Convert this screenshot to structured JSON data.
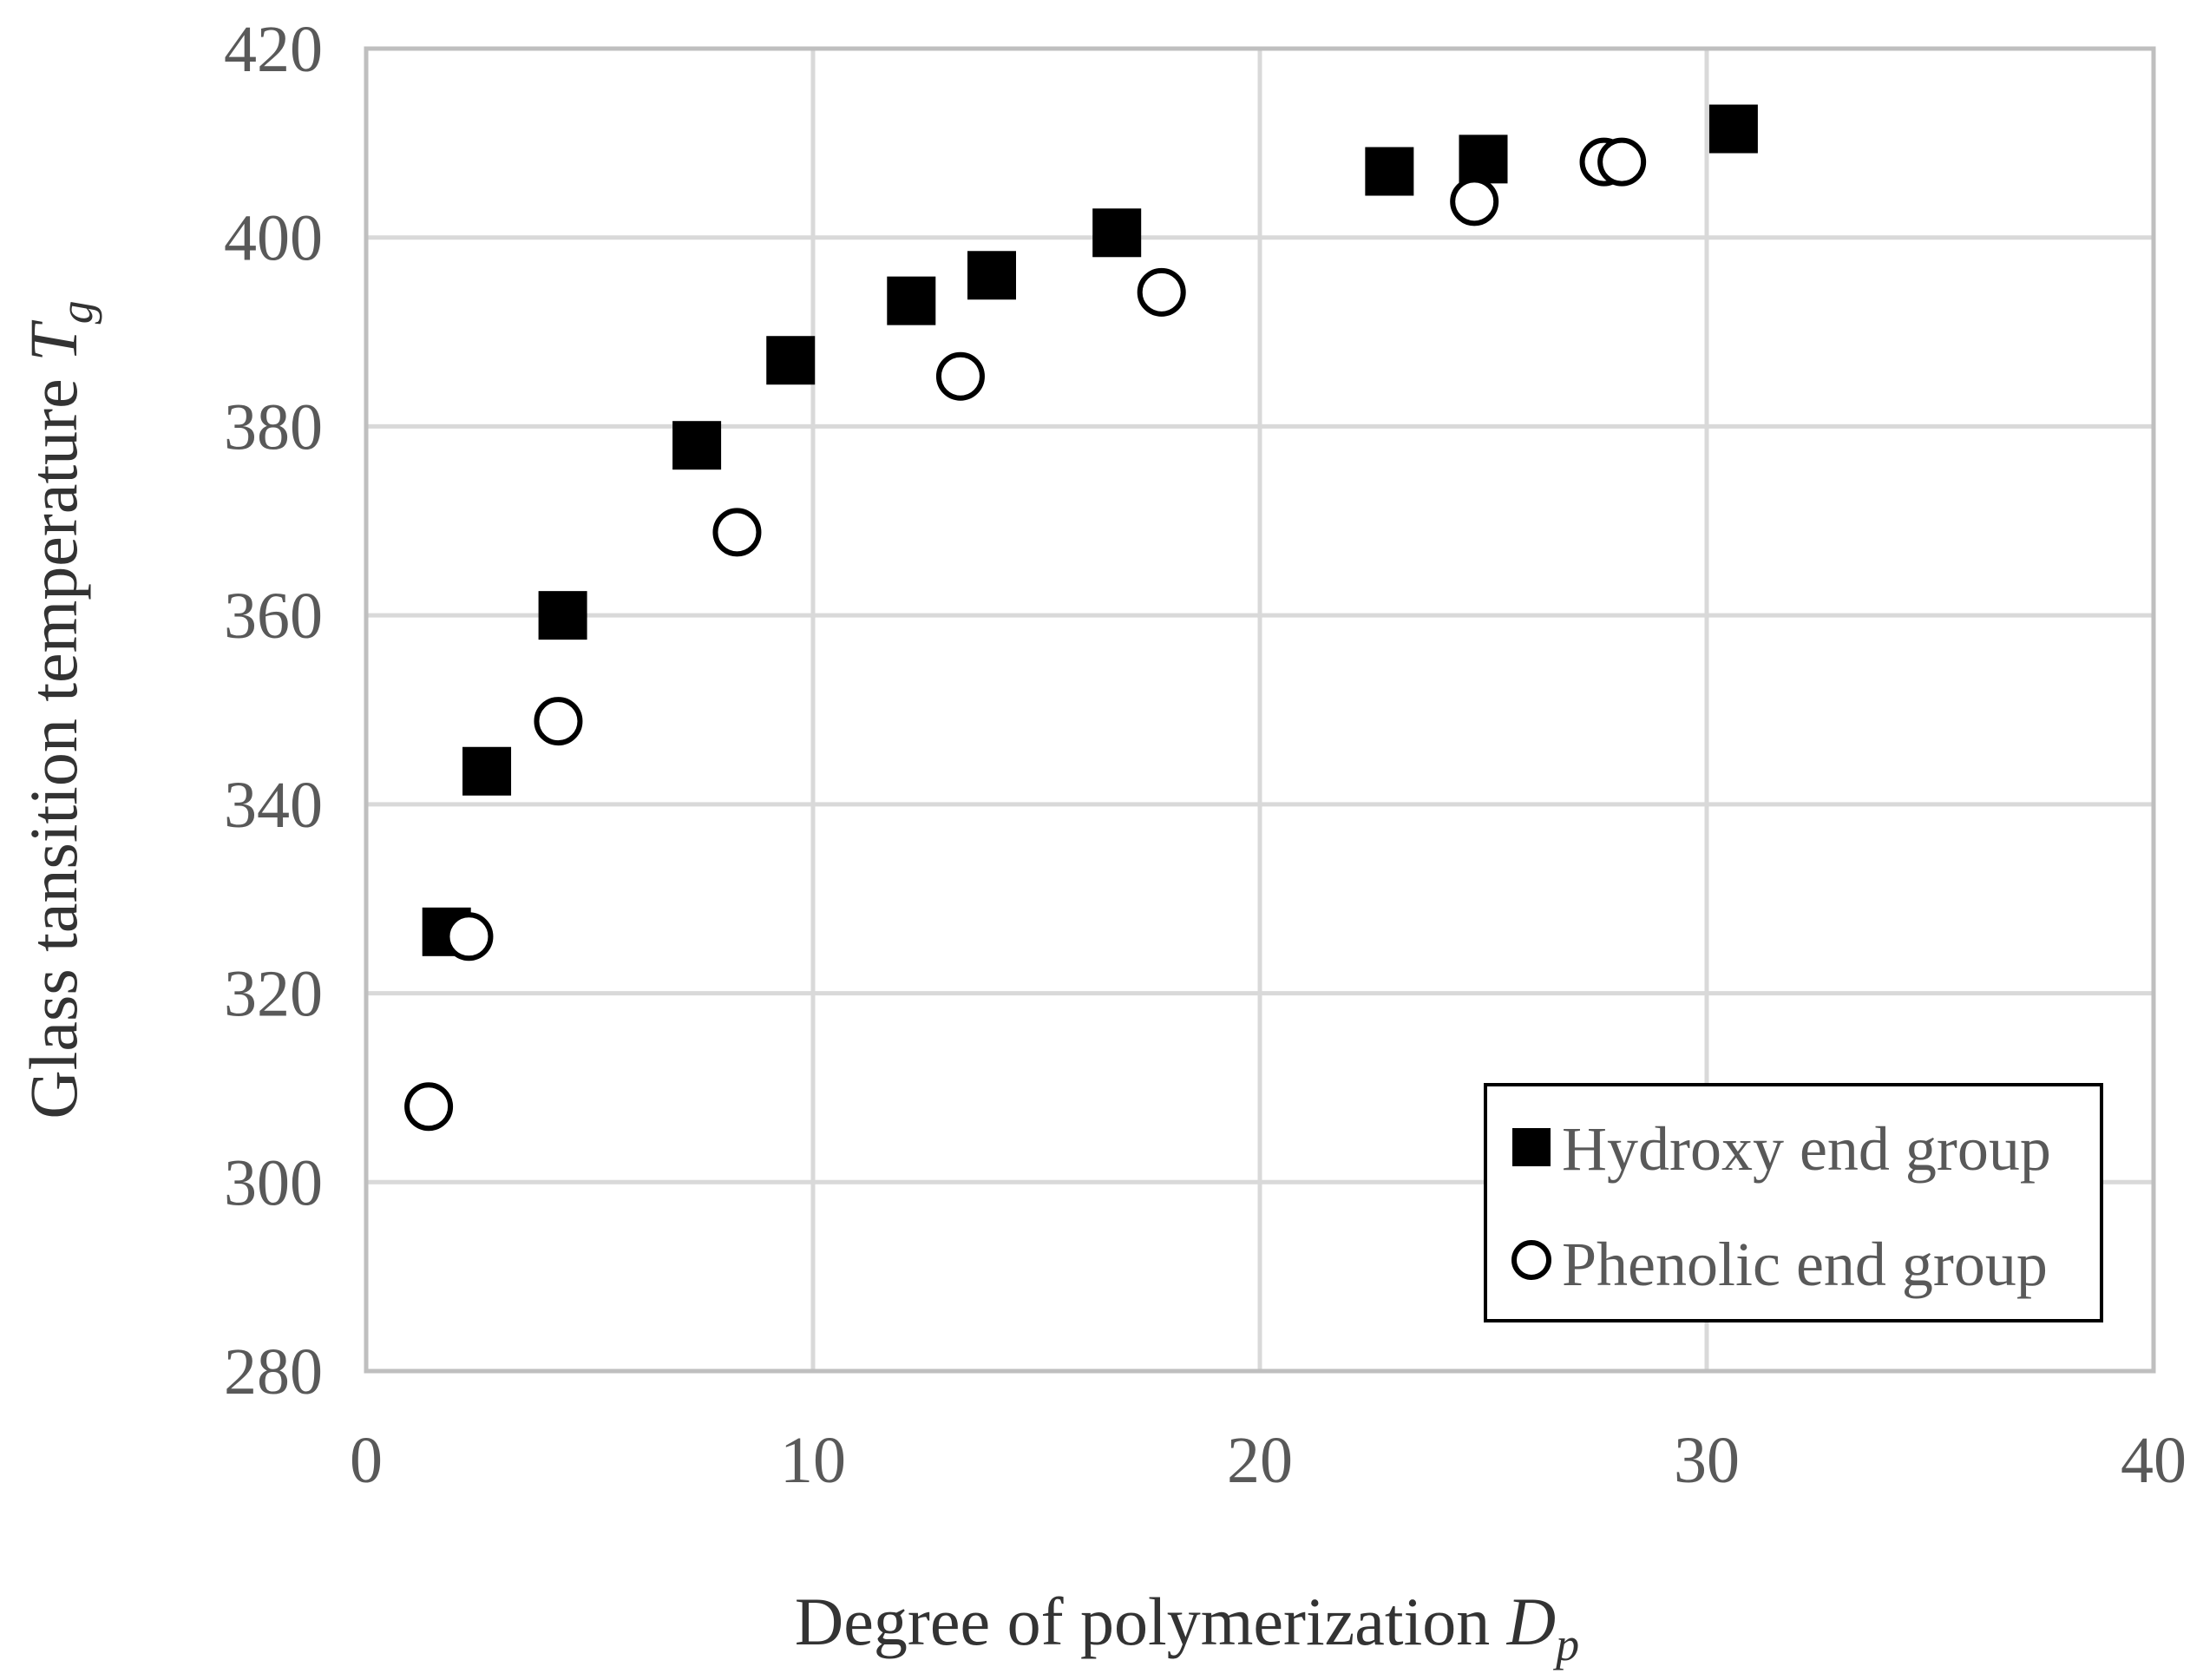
{
  "chart_data": {
    "type": "scatter",
    "title": "",
    "xlabel": "Degree of polymerization",
    "xlabel_symbol": "D",
    "xlabel_subscript": "p",
    "ylabel": "Glass tansition temperature",
    "ylabel_symbol": "T",
    "ylabel_subscript": "g",
    "xlim": [
      0,
      40
    ],
    "ylim": [
      280,
      420
    ],
    "xticks": [
      "0",
      "10",
      "20",
      "30",
      "40"
    ],
    "yticks": [
      "280",
      "300",
      "320",
      "340",
      "360",
      "380",
      "400",
      "420"
    ],
    "grid": true,
    "legend_position": "bottom-right",
    "series": [
      {
        "name": "Hydroxy end group",
        "marker": "filled-square",
        "color": "#000000",
        "points": [
          {
            "x": 1.8,
            "y": 326.5
          },
          {
            "x": 2.7,
            "y": 343.5
          },
          {
            "x": 4.4,
            "y": 360
          },
          {
            "x": 7.4,
            "y": 378
          },
          {
            "x": 9.5,
            "y": 387
          },
          {
            "x": 12.2,
            "y": 393.3
          },
          {
            "x": 14.0,
            "y": 396
          },
          {
            "x": 16.8,
            "y": 400.5
          },
          {
            "x": 22.9,
            "y": 407
          },
          {
            "x": 25.0,
            "y": 408.3
          },
          {
            "x": 30.6,
            "y": 411.5
          }
        ]
      },
      {
        "name": "Phenolic end group",
        "marker": "open-circle",
        "color": "#000000",
        "points": [
          {
            "x": 1.4,
            "y": 308
          },
          {
            "x": 2.3,
            "y": 326
          },
          {
            "x": 4.3,
            "y": 348.8
          },
          {
            "x": 8.3,
            "y": 368.8
          },
          {
            "x": 13.3,
            "y": 385.3
          },
          {
            "x": 17.8,
            "y": 394.2
          },
          {
            "x": 24.8,
            "y": 403.8
          },
          {
            "x": 27.7,
            "y": 408
          },
          {
            "x": 28.1,
            "y": 408
          }
        ]
      }
    ]
  }
}
